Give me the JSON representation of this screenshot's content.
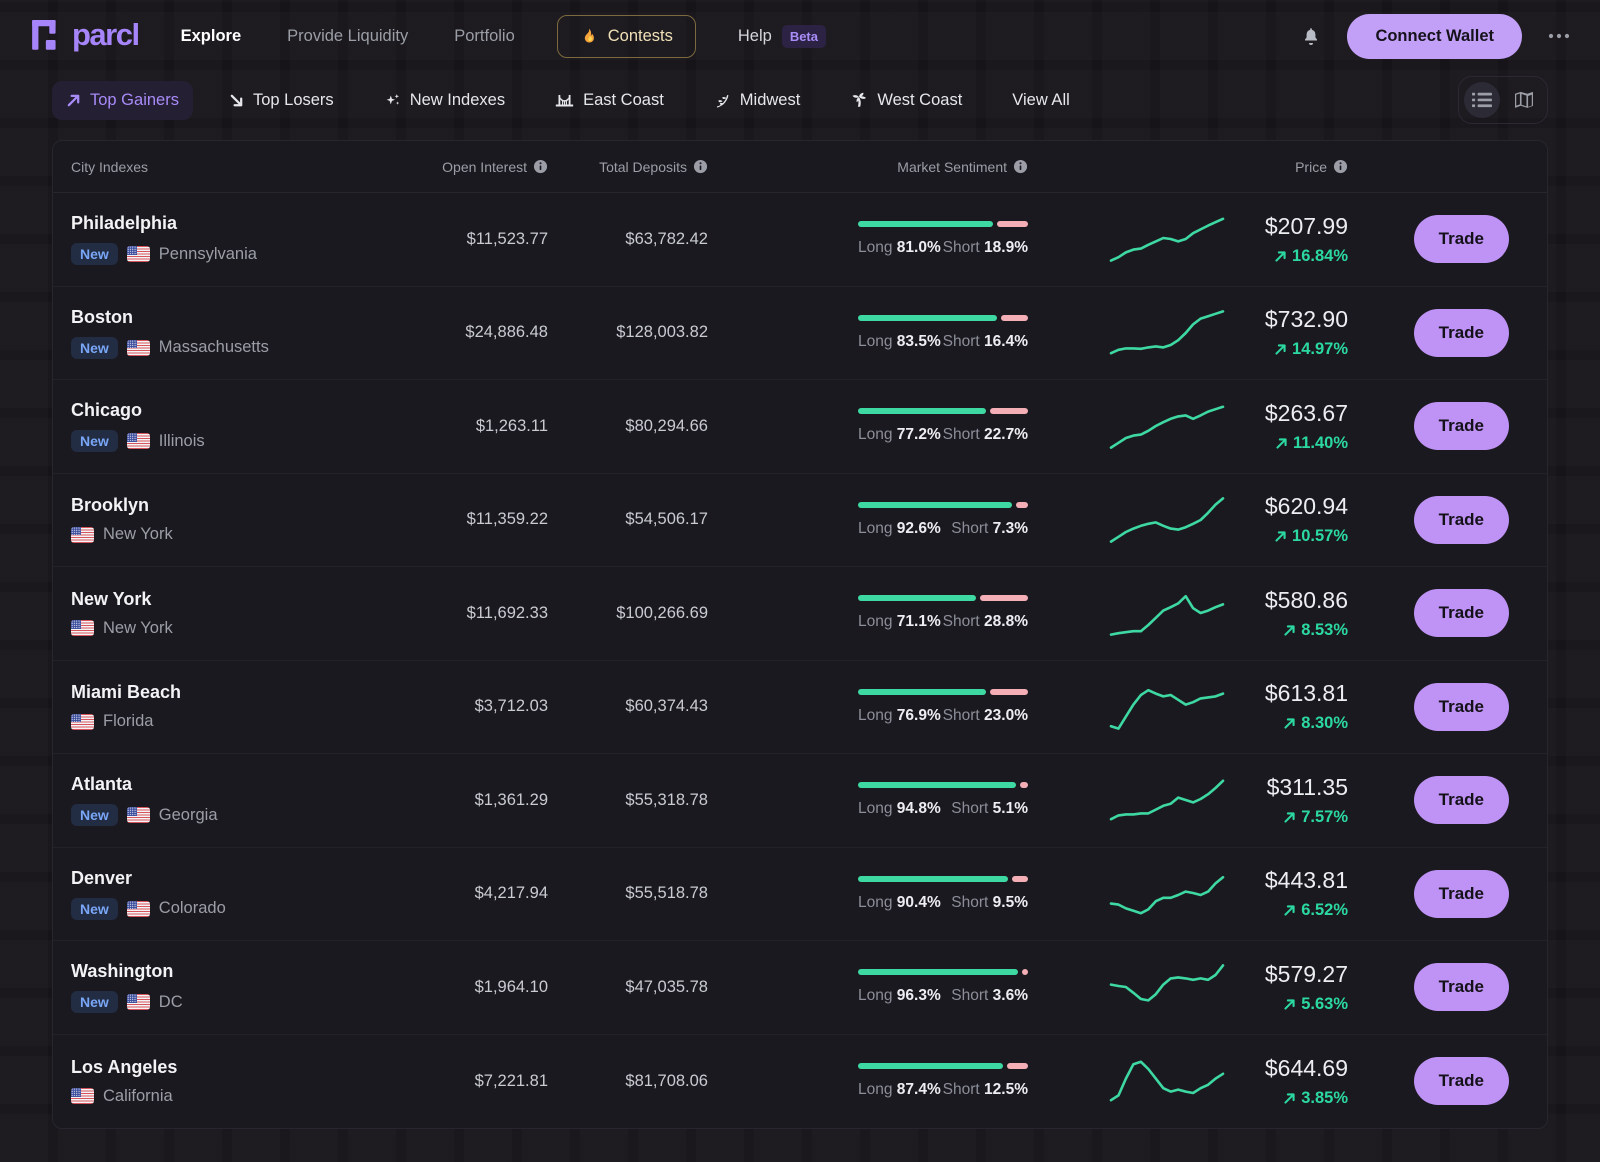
{
  "brand": {
    "name": "parcl"
  },
  "nav": {
    "items": [
      {
        "label": "Explore",
        "active": true
      },
      {
        "label": "Provide Liquidity",
        "active": false
      },
      {
        "label": "Portfolio",
        "active": false
      }
    ],
    "contests_label": "Contests",
    "help_label": "Help",
    "beta_badge": "Beta",
    "connect_wallet_label": "Connect Wallet"
  },
  "filters": {
    "tabs": [
      {
        "label": "Top Gainers",
        "icon": "trend-up",
        "active": true
      },
      {
        "label": "Top Losers",
        "icon": "trend-down",
        "active": false
      },
      {
        "label": "New Indexes",
        "icon": "sparkles",
        "active": false
      },
      {
        "label": "East Coast",
        "icon": "bridge",
        "active": false
      },
      {
        "label": "Midwest",
        "icon": "wheat",
        "active": false
      },
      {
        "label": "West Coast",
        "icon": "palm",
        "active": false
      },
      {
        "label": "View All",
        "icon": "",
        "active": false
      }
    ]
  },
  "table": {
    "headers": {
      "city": "City Indexes",
      "open_interest": "Open Interest",
      "total_deposits": "Total Deposits",
      "market_sentiment": "Market Sentiment",
      "price": "Price"
    },
    "long_label": "Long",
    "short_label": "Short",
    "new_badge_label": "New",
    "trade_label": "Trade",
    "rows": [
      {
        "city": "Philadelphia",
        "state": "Pennsylvania",
        "new": true,
        "open_interest": "$11,523.77",
        "total_deposits": "$63,782.42",
        "long": "81.0%",
        "short": "18.9%",
        "long_pct": 81.0,
        "short_pct": 18.9,
        "price": "$207.99",
        "change": "16.84%",
        "spark": [
          0.05,
          0.12,
          0.22,
          0.28,
          0.3,
          0.38,
          0.45,
          0.52,
          0.5,
          0.45,
          0.5,
          0.62,
          0.7,
          0.78,
          0.85,
          0.92
        ]
      },
      {
        "city": "Boston",
        "state": "Massachusetts",
        "new": true,
        "open_interest": "$24,886.48",
        "total_deposits": "$128,003.82",
        "long": "83.5%",
        "short": "16.4%",
        "long_pct": 83.5,
        "short_pct": 16.4,
        "price": "$732.90",
        "change": "14.97%",
        "spark": [
          0.08,
          0.15,
          0.18,
          0.18,
          0.17,
          0.2,
          0.22,
          0.2,
          0.25,
          0.35,
          0.5,
          0.68,
          0.8,
          0.85,
          0.9,
          0.95
        ]
      },
      {
        "city": "Chicago",
        "state": "Illinois",
        "new": true,
        "open_interest": "$1,263.11",
        "total_deposits": "$80,294.66",
        "long": "77.2%",
        "short": "22.7%",
        "long_pct": 77.2,
        "short_pct": 22.7,
        "price": "$263.67",
        "change": "11.40%",
        "spark": [
          0.05,
          0.15,
          0.25,
          0.3,
          0.32,
          0.4,
          0.5,
          0.58,
          0.65,
          0.7,
          0.72,
          0.65,
          0.72,
          0.8,
          0.85,
          0.9
        ]
      },
      {
        "city": "Brooklyn",
        "state": "New York",
        "new": false,
        "open_interest": "$11,359.22",
        "total_deposits": "$54,506.17",
        "long": "92.6%",
        "short": "7.3%",
        "long_pct": 92.6,
        "short_pct": 7.3,
        "price": "$620.94",
        "change": "10.57%",
        "spark": [
          0.05,
          0.15,
          0.25,
          0.32,
          0.38,
          0.42,
          0.45,
          0.38,
          0.32,
          0.3,
          0.35,
          0.42,
          0.5,
          0.65,
          0.82,
          0.95
        ]
      },
      {
        "city": "New York",
        "state": "New York",
        "new": false,
        "open_interest": "$11,692.33",
        "total_deposits": "$100,266.69",
        "long": "71.1%",
        "short": "28.8%",
        "long_pct": 71.1,
        "short_pct": 28.8,
        "price": "$580.86",
        "change": "8.53%",
        "spark": [
          0.05,
          0.08,
          0.1,
          0.12,
          0.12,
          0.25,
          0.4,
          0.55,
          0.62,
          0.7,
          0.85,
          0.6,
          0.5,
          0.55,
          0.62,
          0.68
        ]
      },
      {
        "city": "Miami Beach",
        "state": "Florida",
        "new": false,
        "open_interest": "$3,712.03",
        "total_deposits": "$60,374.43",
        "long": "76.9%",
        "short": "23.0%",
        "long_pct": 76.9,
        "short_pct": 23.0,
        "price": "$613.81",
        "change": "8.30%",
        "spark": [
          0.1,
          0.05,
          0.3,
          0.55,
          0.75,
          0.85,
          0.78,
          0.72,
          0.75,
          0.65,
          0.55,
          0.6,
          0.68,
          0.7,
          0.72,
          0.78
        ]
      },
      {
        "city": "Atlanta",
        "state": "Georgia",
        "new": true,
        "open_interest": "$1,361.29",
        "total_deposits": "$55,318.78",
        "long": "94.8%",
        "short": "5.1%",
        "long_pct": 94.8,
        "short_pct": 5.1,
        "price": "$311.35",
        "change": "7.57%",
        "spark": [
          0.1,
          0.18,
          0.2,
          0.2,
          0.22,
          0.22,
          0.3,
          0.38,
          0.42,
          0.55,
          0.5,
          0.45,
          0.52,
          0.62,
          0.75,
          0.9
        ]
      },
      {
        "city": "Denver",
        "state": "Colorado",
        "new": true,
        "open_interest": "$4,217.94",
        "total_deposits": "$55,518.78",
        "long": "90.4%",
        "short": "9.5%",
        "long_pct": 90.4,
        "short_pct": 9.5,
        "price": "$443.81",
        "change": "6.52%",
        "spark": [
          0.3,
          0.28,
          0.2,
          0.15,
          0.1,
          0.18,
          0.35,
          0.42,
          0.42,
          0.48,
          0.55,
          0.52,
          0.48,
          0.55,
          0.72,
          0.85
        ]
      },
      {
        "city": "Washington",
        "state": "DC",
        "new": true,
        "open_interest": "$1,964.10",
        "total_deposits": "$47,035.78",
        "long": "96.3%",
        "short": "3.6%",
        "long_pct": 96.3,
        "short_pct": 3.6,
        "price": "$579.27",
        "change": "5.63%",
        "spark": [
          0.55,
          0.52,
          0.5,
          0.38,
          0.25,
          0.22,
          0.35,
          0.55,
          0.68,
          0.7,
          0.68,
          0.65,
          0.68,
          0.65,
          0.75,
          0.95
        ]
      },
      {
        "city": "Los Angeles",
        "state": "California",
        "new": false,
        "open_interest": "$7,221.81",
        "total_deposits": "$81,708.06",
        "long": "87.4%",
        "short": "12.5%",
        "long_pct": 87.4,
        "short_pct": 12.5,
        "price": "$644.69",
        "change": "3.85%",
        "spark": [
          0.1,
          0.2,
          0.55,
          0.85,
          0.9,
          0.75,
          0.55,
          0.35,
          0.28,
          0.32,
          0.28,
          0.25,
          0.35,
          0.42,
          0.55,
          0.65
        ]
      }
    ]
  },
  "colors": {
    "accent_purple": "#a685fa",
    "button_purple": "#bf93f6",
    "sentiment_green": "#3ed9a2",
    "sentiment_pink": "#f4aeb6",
    "change_green": "#2bd9a0",
    "new_badge_blue": "#79a6f6",
    "contests_gold": "#f0e0b8"
  }
}
